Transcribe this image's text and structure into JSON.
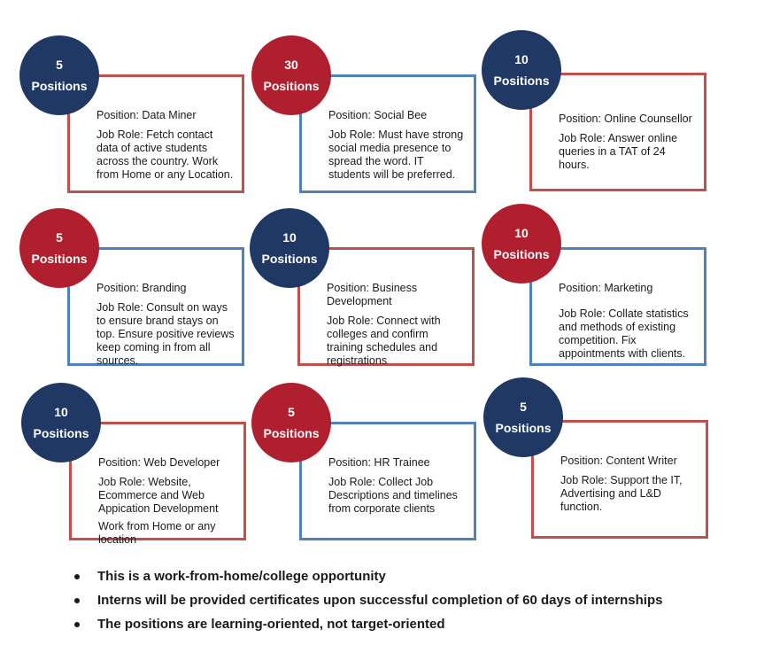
{
  "cards": [
    {
      "count": "5",
      "unit": "Positions",
      "position": "Position: Data Miner",
      "role": "Job Role: Fetch contact data of active students across the country. Work from Home or any Location.",
      "extra": ""
    },
    {
      "count": "30",
      "unit": "Positions",
      "position": "Position: Social Bee",
      "role": "Job Role: Must have strong social media presence to spread the word. IT students will be preferred.",
      "extra": ""
    },
    {
      "count": "10",
      "unit": "Positions",
      "position": "Position: Online Counsellor",
      "role": "Job Role: Answer online queries in a TAT of 24 hours.",
      "extra": ""
    },
    {
      "count": "5",
      "unit": "Positions",
      "position": "Position: Branding",
      "role": "Job Role: Consult on ways to ensure brand stays on top. Ensure positive reviews keep coming in from all sources.",
      "extra": ""
    },
    {
      "count": "10",
      "unit": "Positions",
      "position": "Position: Business Development",
      "role": "Job Role: Connect with colleges and confirm training schedules and registrations",
      "extra": ""
    },
    {
      "count": "10",
      "unit": "Positions",
      "position": "Position:  Marketing",
      "role": "Job Role: Collate statistics and methods of existing competition. Fix appointments with clients.",
      "extra": ""
    },
    {
      "count": "10",
      "unit": "Positions",
      "position": "Position: Web Developer",
      "role": "Job Role: Website, Ecommerce and Web Appication Development",
      "extra": "Work from Home  or any location"
    },
    {
      "count": "5",
      "unit": "Positions",
      "position": "Position: HR Trainee",
      "role": "Job Role: Collect Job Descriptions and timelines from corporate clients",
      "extra": ""
    },
    {
      "count": "5",
      "unit": "Positions",
      "position": "Position: Content Writer",
      "role": "Job Role: Support the IT, Advertising and L&D function.",
      "extra": ""
    }
  ],
  "bullets": [
    "This is a work-from-home/college opportunity",
    "Interns will be provided certificates upon successful completion of 60 days of internships",
    "The positions are learning-oriented, not target-oriented"
  ],
  "colors": {
    "navy": "#1f3864",
    "crimson": "#b01f2e",
    "red_border": "#c0504d",
    "blue_border": "#4f81bd"
  }
}
